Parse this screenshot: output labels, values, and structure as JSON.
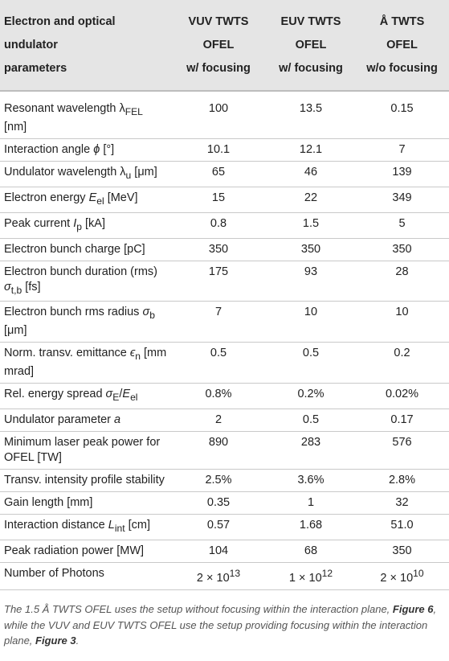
{
  "table": {
    "headers": [
      [
        "Electron and optical",
        "undulator",
        "parameters"
      ],
      [
        "VUV TWTS",
        "OFEL",
        "w/ focusing"
      ],
      [
        "EUV TWTS",
        "OFEL",
        "w/ focusing"
      ],
      [
        "Å TWTS",
        "OFEL",
        "w/o focusing"
      ]
    ],
    "rows": [
      {
        "label": "Resonant wavelength λFEL [nm]",
        "values": [
          "100",
          "13.5",
          "0.15"
        ]
      },
      {
        "label": "Interaction angle ϕ [°]",
        "values": [
          "10.1",
          "12.1",
          "7"
        ]
      },
      {
        "label": "Undulator wavelength λu [μm]",
        "values": [
          "65",
          "46",
          "139"
        ]
      },
      {
        "label": "Electron energy Eel [MeV]",
        "values": [
          "15",
          "22",
          "349"
        ]
      },
      {
        "label": "Peak current Ip [kA]",
        "values": [
          "0.8",
          "1.5",
          "5"
        ]
      },
      {
        "label": "Electron bunch charge [pC]",
        "values": [
          "350",
          "350",
          "350"
        ]
      },
      {
        "label": "Electron bunch duration (rms) σt,b [fs]",
        "values": [
          "175",
          "93",
          "28"
        ]
      },
      {
        "label": "Electron bunch rms radius σb [μm]",
        "values": [
          "7",
          "10",
          "10"
        ]
      },
      {
        "label": "Norm. transv. emittance ϵn [mm mrad]",
        "values": [
          "0.5",
          "0.5",
          "0.2"
        ]
      },
      {
        "label": "Rel. energy spread σE/Eel",
        "values": [
          "0.8%",
          "0.2%",
          "0.02%"
        ]
      },
      {
        "label": "Undulator parameter a",
        "values": [
          "2",
          "0.5",
          "0.17"
        ]
      },
      {
        "label": "Minimum laser peak power for OFEL [TW]",
        "values": [
          "890",
          "283",
          "576"
        ]
      },
      {
        "label": "Transv. intensity profile stability",
        "values": [
          "2.5%",
          "3.6%",
          "2.8%"
        ]
      },
      {
        "label": "Gain length [mm]",
        "values": [
          "0.35",
          "1",
          "32"
        ]
      },
      {
        "label": "Interaction distance Lint [cm]",
        "values": [
          "0.57",
          "1.68",
          "51.0"
        ]
      },
      {
        "label": "Peak radiation power [MW]",
        "values": [
          "104",
          "68",
          "350"
        ]
      },
      {
        "label": "Number of Photons",
        "values": [
          "2 × 10^13",
          "1 × 10^12",
          "2 × 10^10"
        ]
      }
    ]
  },
  "caption": {
    "t1": "The 1.5 Å TWTS OFEL uses the setup without focusing within the interaction plane,",
    "ref1": "Figure 6",
    "t2": ", while the VUV and EUV TWTS OFEL use the setup providing focusing within the interaction plane,",
    "ref2": "Figure 3",
    "t3": "."
  }
}
